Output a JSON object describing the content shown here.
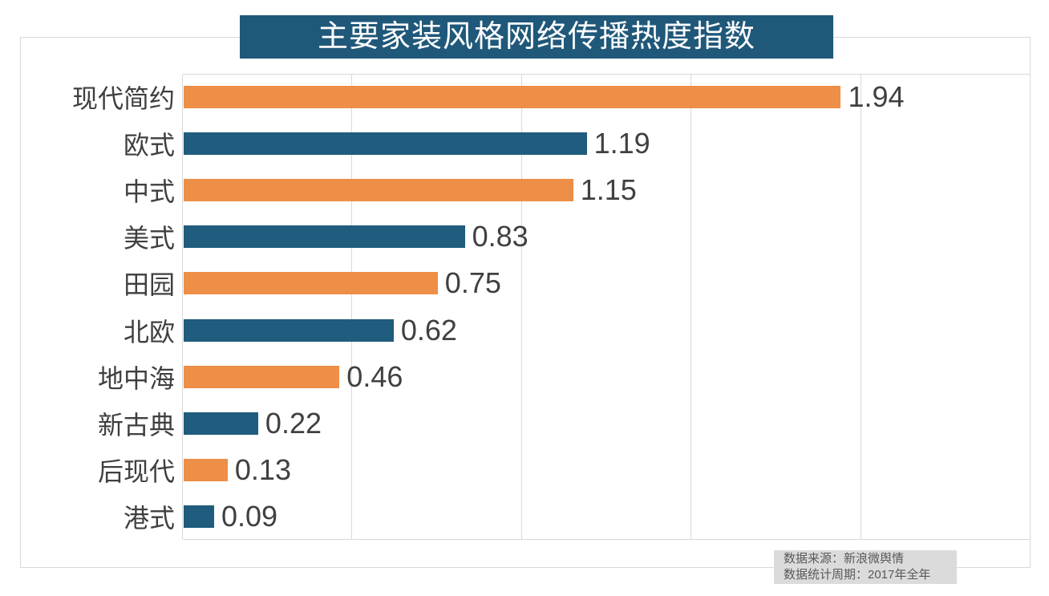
{
  "title": "主要家装风格网络传播热度指数",
  "chart_data": {
    "type": "bar",
    "orientation": "horizontal",
    "title": "主要家装风格网络传播热度指数",
    "categories": [
      "现代简约",
      "欧式",
      "中式",
      "美式",
      "田园",
      "北欧",
      "地中海",
      "新古典",
      "后现代",
      "港式"
    ],
    "values": [
      1.94,
      1.19,
      1.15,
      0.83,
      0.75,
      0.62,
      0.46,
      0.22,
      0.13,
      0.09
    ],
    "value_labels": [
      "1.94",
      "1.19",
      "1.15",
      "0.83",
      "0.75",
      "0.62",
      "0.46",
      "0.22",
      "0.13",
      "0.09"
    ],
    "xlim": [
      0,
      2.5
    ],
    "gridline_step": 0.5,
    "grid": true,
    "legend": "none",
    "palette": {
      "odd_rows": "#EE8F47",
      "even_rows": "#1F5C7D"
    }
  },
  "footer": {
    "source_line": "数据来源：新浪微舆情",
    "period_line": "数据统计周期：2017年全年"
  },
  "colors": {
    "banner_bg": "#20587A",
    "banner_text": "#FFFFFF",
    "bar_orange": "#EE8F47",
    "bar_blue": "#1F5C7D",
    "grid": "#D9D9D9",
    "frame_border": "#D9D9D9",
    "label_text": "#3F3F3F",
    "value_text": "#404040",
    "footer_bg": "#DBDBDB",
    "footer_text": "#595959"
  }
}
